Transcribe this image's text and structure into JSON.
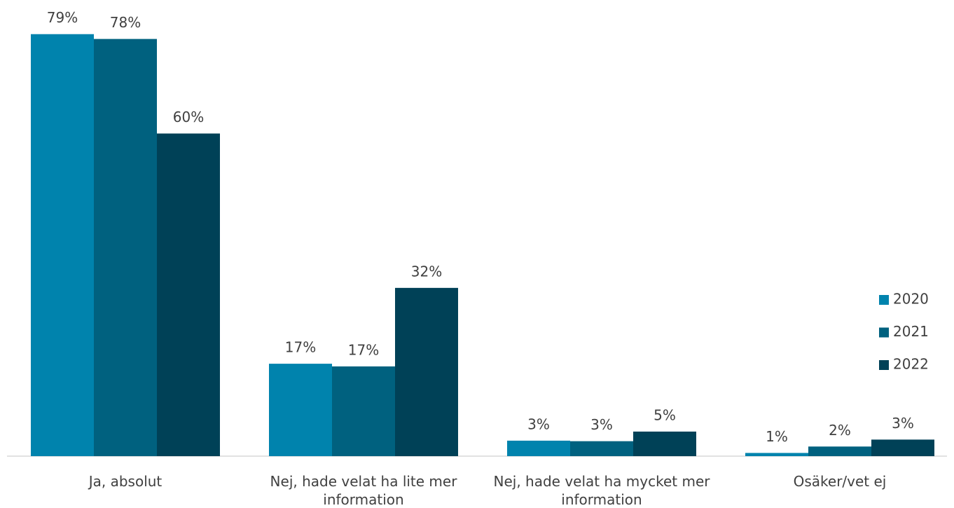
{
  "chart_data": {
    "type": "bar",
    "categories": [
      "Ja, absolut",
      "Nej, hade velat ha lite mer information",
      "Nej, hade velat ha mycket mer information",
      "Osäker/vet ej"
    ],
    "series": [
      {
        "name": "2020",
        "color": "#0083ad",
        "values": [
          79,
          17.3,
          2.9,
          0.6
        ],
        "value_labels": [
          "79%",
          "17%",
          "3%",
          "1%"
        ]
      },
      {
        "name": "2021",
        "color": "#00617f",
        "values": [
          78.1,
          16.8,
          2.8,
          1.8
        ],
        "value_labels": [
          "78%",
          "17%",
          "3%",
          "2%"
        ]
      },
      {
        "name": "2022",
        "color": "#004157",
        "values": [
          60.4,
          31.5,
          4.6,
          3.1
        ],
        "value_labels": [
          "60%",
          "32%",
          "5%",
          "3%"
        ]
      }
    ],
    "ylim": [
      0,
      85
    ],
    "legend": "right"
  }
}
